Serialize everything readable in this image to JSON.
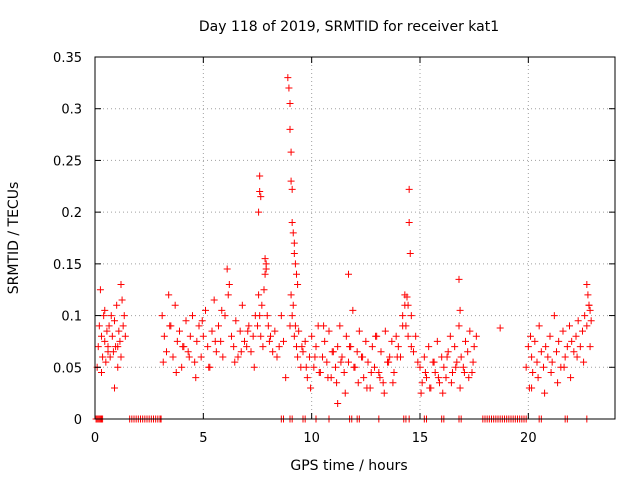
{
  "chart_data": {
    "type": "scatter",
    "title": "Day 118 of 2019, SRMTID for receiver kat1",
    "xlabel": "GPS time / hours",
    "ylabel": "SRMTID / TECUs",
    "xlim": [
      0,
      24
    ],
    "ylim": [
      0,
      0.35
    ],
    "xticks": [
      0,
      5,
      10,
      15,
      20
    ],
    "xtick_labels": [
      "0",
      "5",
      "10",
      "15",
      "20"
    ],
    "yticks": [
      0,
      0.05,
      0.1,
      0.15,
      0.2,
      0.25,
      0.3,
      0.35
    ],
    "ytick_labels": [
      "0",
      "0.05",
      "0.1",
      "0.15",
      "0.2",
      "0.25",
      "0.3",
      "0.35"
    ],
    "grid": true,
    "marker": "+",
    "color": "#ff0000",
    "series": [
      {
        "name": "SRMTID",
        "x": [
          0.1,
          0.15,
          0.2,
          0.25,
          0.3,
          0.35,
          0.4,
          0.45,
          0.5,
          0.55,
          0.6,
          0.65,
          0.7,
          0.75,
          0.8,
          0.85,
          0.9,
          0.95,
          1.0,
          1.05,
          1.1,
          1.15,
          1.2,
          1.25,
          1.3,
          1.35,
          1.4,
          0.3,
          0.6,
          0.9,
          1.2,
          0.45,
          1.05,
          3.1,
          3.2,
          3.3,
          3.4,
          3.5,
          3.6,
          3.7,
          3.8,
          3.9,
          4.0,
          4.1,
          4.2,
          4.3,
          4.4,
          4.5,
          4.6,
          4.7,
          4.8,
          4.9,
          5.0,
          5.1,
          5.2,
          5.3,
          5.4,
          5.5,
          5.6,
          5.7,
          5.8,
          5.9,
          6.0,
          6.1,
          6.2,
          6.3,
          6.4,
          6.5,
          6.6,
          6.7,
          6.8,
          6.9,
          7.0,
          7.1,
          7.2,
          7.3,
          7.4,
          3.15,
          3.45,
          3.75,
          4.05,
          4.35,
          4.65,
          4.95,
          5.25,
          5.55,
          5.85,
          6.15,
          6.45,
          6.75,
          7.05,
          7.35,
          7.5,
          7.55,
          7.6,
          7.65,
          7.7,
          7.75,
          7.8,
          7.85,
          7.9,
          7.95,
          8.0,
          8.05,
          8.1,
          8.2,
          8.3,
          8.4,
          8.5,
          8.6,
          8.7,
          8.8,
          7.55,
          7.6,
          7.6,
          7.65,
          7.85,
          7.9,
          8.9,
          8.95,
          9.0,
          9.0,
          9.05,
          9.05,
          9.1,
          9.1,
          9.15,
          9.2,
          9.2,
          9.25,
          9.3,
          9.35,
          9.0,
          9.05,
          9.1,
          9.15,
          9.2,
          9.25,
          9.3,
          9.35,
          9.4,
          9.5,
          9.6,
          9.7,
          9.8,
          9.9,
          10.0,
          10.1,
          10.2,
          10.3,
          10.4,
          10.5,
          10.6,
          10.7,
          10.8,
          10.9,
          11.0,
          11.1,
          11.2,
          11.3,
          11.4,
          11.5,
          11.6,
          11.7,
          11.8,
          11.9,
          12.0,
          12.1,
          12.2,
          12.3,
          12.4,
          12.5,
          12.6,
          12.7,
          12.8,
          12.9,
          13.0,
          13.1,
          13.2,
          13.3,
          13.4,
          13.5,
          13.6,
          13.7,
          13.8,
          13.9,
          14.0,
          14.1,
          14.2,
          14.3,
          9.55,
          9.75,
          9.95,
          10.15,
          10.35,
          10.55,
          10.75,
          10.95,
          11.15,
          11.35,
          11.55,
          11.75,
          11.95,
          12.15,
          12.35,
          12.55,
          12.75,
          12.95,
          13.15,
          13.35,
          13.55,
          13.75,
          13.95,
          11.7,
          11.2,
          14.2,
          14.3,
          14.35,
          14.4,
          14.45,
          14.45,
          14.5,
          14.5,
          14.55,
          14.6,
          14.6,
          14.7,
          14.8,
          14.9,
          15.0,
          15.1,
          15.2,
          15.3,
          15.4,
          15.5,
          15.6,
          15.7,
          15.8,
          15.9,
          16.0,
          16.1,
          16.2,
          16.3,
          16.4,
          16.5,
          16.6,
          16.7,
          16.8,
          16.9,
          17.0,
          17.1,
          17.2,
          17.3,
          17.4,
          17.5,
          17.6,
          15.05,
          15.25,
          15.45,
          15.65,
          15.85,
          16.05,
          16.25,
          16.45,
          16.65,
          16.85,
          17.05,
          17.25,
          17.45,
          16.8,
          16.85,
          18.7,
          19.9,
          20.0,
          20.05,
          20.1,
          20.15,
          20.2,
          20.3,
          20.4,
          20.5,
          20.6,
          20.7,
          20.8,
          20.9,
          21.0,
          21.1,
          21.2,
          21.3,
          21.4,
          21.5,
          21.6,
          21.7,
          21.8,
          21.9,
          22.0,
          22.1,
          22.2,
          22.3,
          22.4,
          22.5,
          22.6,
          22.7,
          22.8,
          22.9,
          20.15,
          20.45,
          20.75,
          21.05,
          21.35,
          21.65,
          21.95,
          22.25,
          22.55,
          22.85,
          22.7,
          22.75,
          22.8,
          22.85
        ],
        "y": [
          0.05,
          0.07,
          0.09,
          0.125,
          0.08,
          0.06,
          0.1,
          0.075,
          0.055,
          0.085,
          0.07,
          0.09,
          0.06,
          0.1,
          0.08,
          0.065,
          0.095,
          0.07,
          0.11,
          0.05,
          0.085,
          0.075,
          0.06,
          0.115,
          0.09,
          0.1,
          0.08,
          0.045,
          0.065,
          0.03,
          0.13,
          0.105,
          0.07,
          0.1,
          0.08,
          0.065,
          0.12,
          0.09,
          0.06,
          0.11,
          0.075,
          0.085,
          0.05,
          0.07,
          0.095,
          0.065,
          0.08,
          0.1,
          0.055,
          0.075,
          0.09,
          0.06,
          0.08,
          0.105,
          0.07,
          0.05,
          0.085,
          0.115,
          0.065,
          0.09,
          0.075,
          0.06,
          0.1,
          0.145,
          0.13,
          0.08,
          0.07,
          0.095,
          0.06,
          0.085,
          0.11,
          0.075,
          0.07,
          0.09,
          0.065,
          0.08,
          0.1,
          0.055,
          0.09,
          0.045,
          0.07,
          0.06,
          0.04,
          0.095,
          0.05,
          0.075,
          0.105,
          0.12,
          0.055,
          0.065,
          0.085,
          0.05,
          0.09,
          0.12,
          0.1,
          0.08,
          0.11,
          0.07,
          0.125,
          0.155,
          0.145,
          0.1,
          0.09,
          0.075,
          0.08,
          0.065,
          0.085,
          0.06,
          0.07,
          0.1,
          0.075,
          0.04,
          0.2,
          0.22,
          0.235,
          0.215,
          0.14,
          0.15,
          0.33,
          0.32,
          0.305,
          0.28,
          0.258,
          0.23,
          0.222,
          0.19,
          0.18,
          0.17,
          0.16,
          0.15,
          0.14,
          0.13,
          0.09,
          0.12,
          0.1,
          0.11,
          0.08,
          0.09,
          0.07,
          0.06,
          0.085,
          0.05,
          0.065,
          0.075,
          0.04,
          0.06,
          0.08,
          0.05,
          0.07,
          0.09,
          0.045,
          0.06,
          0.075,
          0.055,
          0.085,
          0.04,
          0.065,
          0.05,
          0.07,
          0.09,
          0.06,
          0.045,
          0.08,
          0.055,
          0.07,
          0.105,
          0.05,
          0.065,
          0.085,
          0.06,
          0.04,
          0.075,
          0.055,
          0.03,
          0.07,
          0.05,
          0.08,
          0.045,
          0.065,
          0.035,
          0.085,
          0.055,
          0.06,
          0.075,
          0.045,
          0.08,
          0.07,
          0.06,
          0.09,
          0.11,
          0.07,
          0.05,
          0.03,
          0.06,
          0.045,
          0.09,
          0.04,
          0.065,
          0.035,
          0.055,
          0.025,
          0.07,
          0.05,
          0.035,
          0.06,
          0.03,
          0.045,
          0.08,
          0.04,
          0.025,
          0.055,
          0.035,
          0.06,
          0.14,
          0.015,
          0.1,
          0.12,
          0.09,
          0.118,
          0.11,
          0.08,
          0.222,
          0.19,
          0.16,
          0.1,
          0.07,
          0.065,
          0.08,
          0.055,
          0.05,
          0.035,
          0.06,
          0.04,
          0.07,
          0.03,
          0.055,
          0.045,
          0.075,
          0.035,
          0.06,
          0.05,
          0.04,
          0.065,
          0.08,
          0.045,
          0.07,
          0.055,
          0.09,
          0.06,
          0.05,
          0.075,
          0.065,
          0.085,
          0.045,
          0.07,
          0.08,
          0.025,
          0.045,
          0.03,
          0.055,
          0.04,
          0.025,
          0.06,
          0.035,
          0.05,
          0.03,
          0.045,
          0.04,
          0.055,
          0.135,
          0.105,
          0.088,
          0.05,
          0.07,
          0.03,
          0.08,
          0.06,
          0.045,
          0.075,
          0.055,
          0.09,
          0.065,
          0.05,
          0.07,
          0.06,
          0.08,
          0.055,
          0.1,
          0.065,
          0.075,
          0.05,
          0.085,
          0.06,
          0.07,
          0.09,
          0.075,
          0.065,
          0.08,
          0.095,
          0.07,
          0.085,
          0.1,
          0.09,
          0.11,
          0.095,
          0.03,
          0.04,
          0.025,
          0.045,
          0.035,
          0.05,
          0.04,
          0.06,
          0.055,
          0.07,
          0.13,
          0.12,
          0.11,
          0.105
        ]
      }
    ],
    "bottom_markers": {
      "y": 0,
      "x": [
        0.05,
        0.1,
        0.15,
        0.2,
        0.25,
        0.3,
        0.35,
        1.6,
        1.7,
        1.8,
        1.9,
        2.0,
        2.1,
        2.2,
        2.3,
        2.4,
        2.5,
        2.6,
        2.7,
        2.8,
        2.9,
        3.0,
        3.05,
        8.6,
        8.7,
        9.0,
        9.1,
        9.6,
        9.7,
        10.2,
        10.8,
        11.75,
        11.85,
        12.1,
        12.2,
        13.1,
        14.25,
        14.35,
        14.5,
        15.2,
        15.3,
        16.0,
        16.1,
        16.8,
        16.9,
        17.9,
        18.0,
        18.1,
        18.2,
        18.3,
        18.4,
        18.5,
        18.6,
        18.7,
        18.8,
        18.9,
        19.0,
        19.1,
        19.2,
        19.3,
        19.4,
        19.5,
        19.6,
        19.7,
        19.8,
        19.9,
        20.5,
        20.6,
        21.7,
        21.8,
        22.7
      ]
    }
  }
}
